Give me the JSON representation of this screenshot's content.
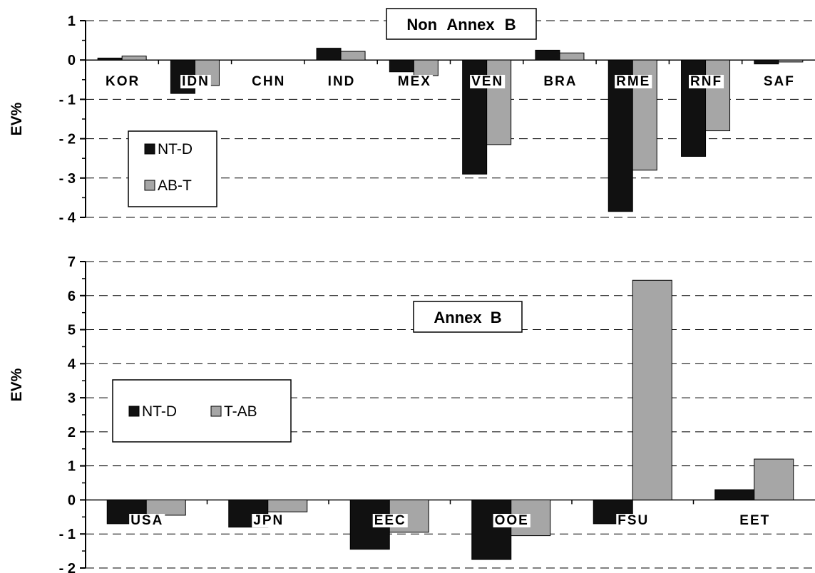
{
  "chart_data": [
    {
      "type": "bar",
      "title": "Non Annex B",
      "ylabel": "EV%",
      "ylim": [
        -4,
        1
      ],
      "yticks": [
        1,
        0,
        -1,
        -2,
        -3,
        -4
      ],
      "grid": true,
      "legend_placement": "left",
      "categories": [
        "KOR",
        "IDN",
        "CHN",
        "IND",
        "MEX",
        "VEN",
        "BRA",
        "RME",
        "RNF",
        "SAF"
      ],
      "series": [
        {
          "name": "NT-D",
          "color": "#111111",
          "values": [
            0.05,
            -0.85,
            0,
            0.3,
            -0.3,
            -2.9,
            0.25,
            -3.85,
            -2.45,
            -0.1
          ]
        },
        {
          "name": "AB-T",
          "color": "#a6a6a6",
          "values": [
            0.1,
            -0.65,
            0,
            0.22,
            -0.4,
            -2.15,
            0.18,
            -2.8,
            -1.8,
            -0.05
          ]
        }
      ]
    },
    {
      "type": "bar",
      "title": "Annex B",
      "ylabel": "EV%",
      "ylim": [
        -2,
        7
      ],
      "yticks": [
        7,
        6,
        5,
        4,
        3,
        2,
        1,
        0,
        -1,
        -2
      ],
      "grid": true,
      "legend_placement": "left",
      "categories": [
        "USA",
        "JPN",
        "EEC",
        "OOE",
        "FSU",
        "EET"
      ],
      "series": [
        {
          "name": "NT-D",
          "color": "#111111",
          "values": [
            -0.7,
            -0.8,
            -1.45,
            -1.75,
            -0.7,
            0.3
          ]
        },
        {
          "name": "T-AB",
          "color": "#a6a6a6",
          "values": [
            -0.45,
            -0.35,
            -0.95,
            -1.05,
            6.45,
            1.2
          ]
        }
      ]
    }
  ]
}
